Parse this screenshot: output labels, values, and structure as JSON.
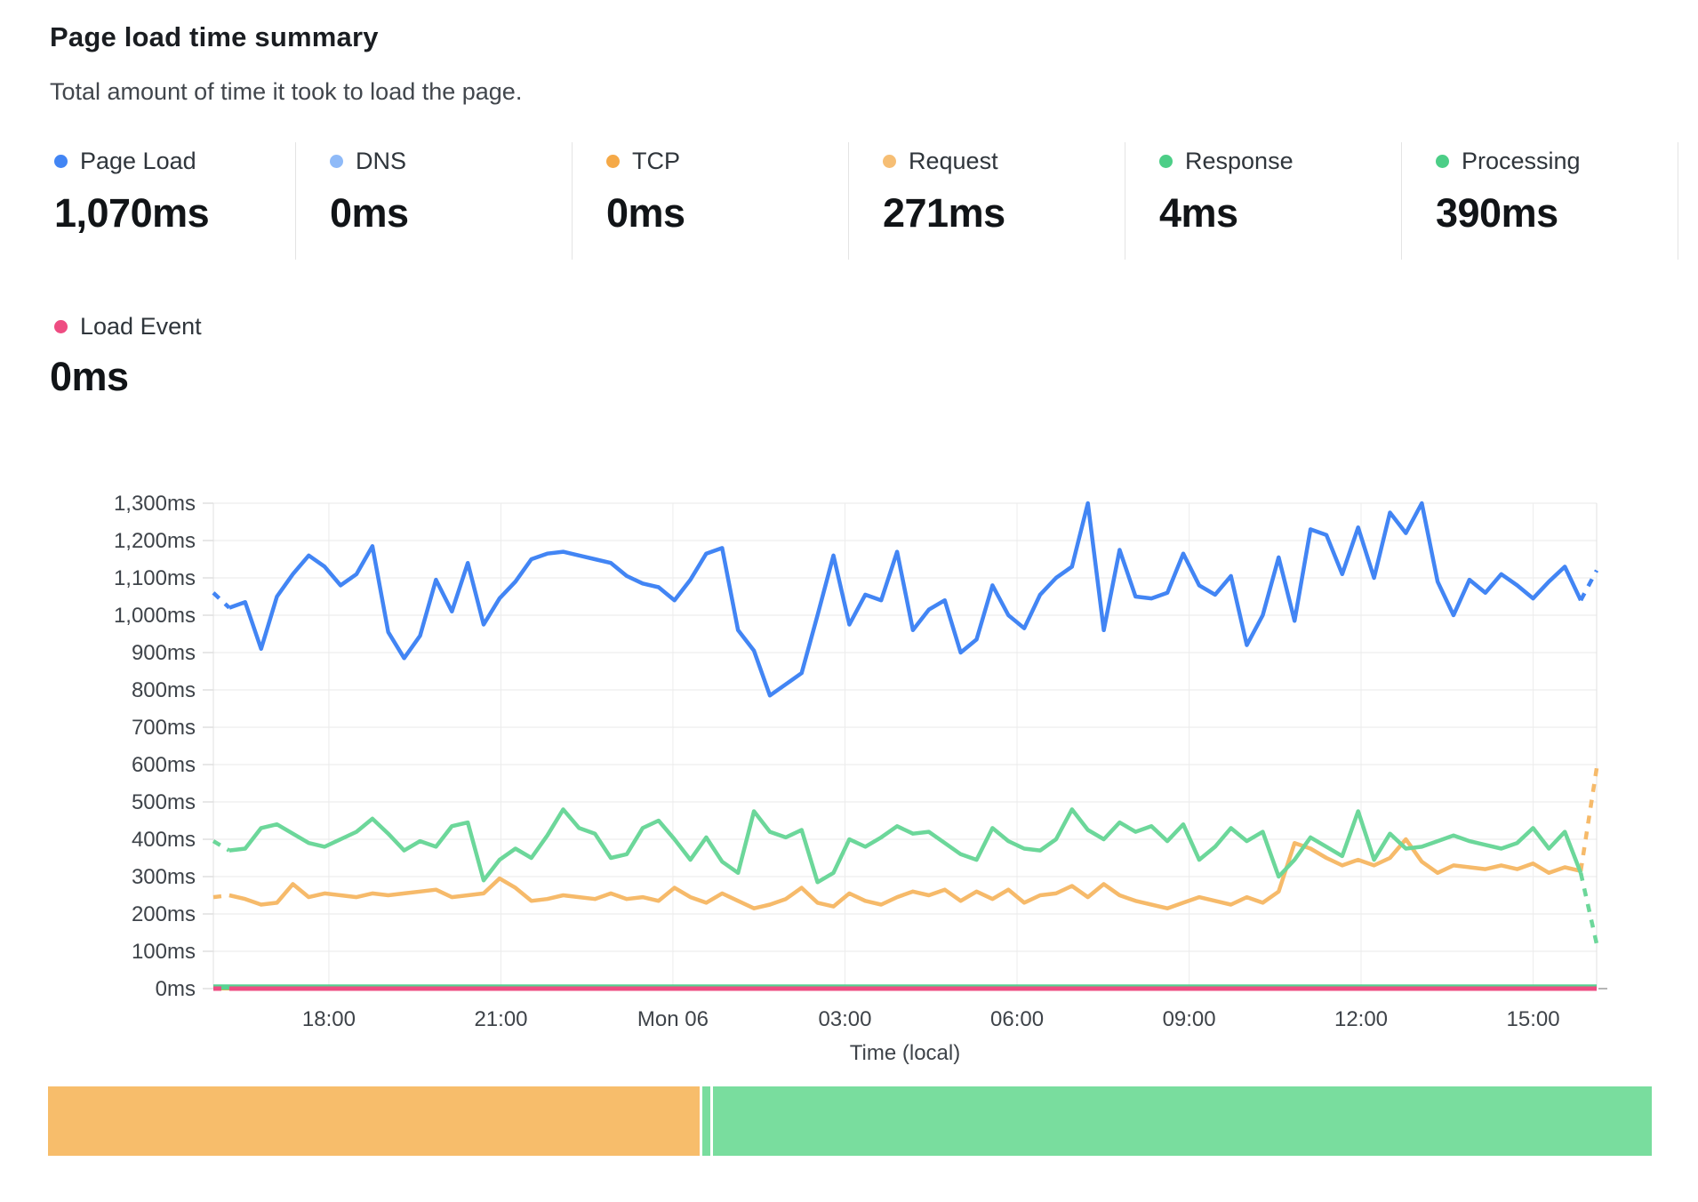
{
  "page": {
    "title": "Page load time summary",
    "subtitle": "Total amount of time it took to load the page."
  },
  "stats": [
    {
      "label": "Page Load",
      "value": "1,070ms",
      "color": "#4285F4"
    },
    {
      "label": "DNS",
      "value": "0ms",
      "color": "#8FBAF8"
    },
    {
      "label": "TCP",
      "value": "0ms",
      "color": "#F5A947"
    },
    {
      "label": "Request",
      "value": "271ms",
      "color": "#F6BE74"
    },
    {
      "label": "Response",
      "value": "4ms",
      "color": "#4CCE87"
    },
    {
      "label": "Processing",
      "value": "390ms",
      "color": "#4CCE87"
    }
  ],
  "load_event": {
    "label": "Load Event",
    "value": "0ms",
    "color": "#EE4D82"
  },
  "chart_data": {
    "type": "line",
    "title": "",
    "xlabel": "Time (local)",
    "ylabel": "",
    "ylim": [
      0,
      1300
    ],
    "grid": true,
    "y_ticks": [
      {
        "v": 0,
        "label": "0ms"
      },
      {
        "v": 100,
        "label": "100ms"
      },
      {
        "v": 200,
        "label": "200ms"
      },
      {
        "v": 300,
        "label": "300ms"
      },
      {
        "v": 400,
        "label": "400ms"
      },
      {
        "v": 500,
        "label": "500ms"
      },
      {
        "v": 600,
        "label": "600ms"
      },
      {
        "v": 700,
        "label": "700ms"
      },
      {
        "v": 800,
        "label": "800ms"
      },
      {
        "v": 900,
        "label": "900ms"
      },
      {
        "v": 1000,
        "label": "1,000ms"
      },
      {
        "v": 1100,
        "label": "1,100ms"
      },
      {
        "v": 1200,
        "label": "1,200ms"
      },
      {
        "v": 1300,
        "label": "1,300ms"
      }
    ],
    "x_ticks": [
      {
        "f": 0.0835,
        "label": "18:00"
      },
      {
        "f": 0.2079,
        "label": "21:00"
      },
      {
        "f": 0.3322,
        "label": "Mon 06"
      },
      {
        "f": 0.4566,
        "label": "03:00"
      },
      {
        "f": 0.581,
        "label": "06:00"
      },
      {
        "f": 0.7054,
        "label": "09:00"
      },
      {
        "f": 0.8297,
        "label": "12:00"
      },
      {
        "f": 0.9541,
        "label": "15:00"
      }
    ],
    "note": "first and last segments of Page Load, Processing and Request are dashed (partial buckets); values estimated from gridlines",
    "series": [
      {
        "name": "DNS",
        "color": "#8FBAF8",
        "width": 4,
        "const": 0
      },
      {
        "name": "TCP",
        "color": "#F5A947",
        "width": 4,
        "const": 0
      },
      {
        "name": "Response",
        "color": "#57D292",
        "width": 6,
        "const": 4
      },
      {
        "name": "Request",
        "color": "#F6BA6A",
        "width": 4.5,
        "dash_first": true,
        "dash_last": true,
        "values": [
          245,
          250,
          240,
          225,
          230,
          280,
          245,
          255,
          250,
          245,
          255,
          250,
          255,
          260,
          265,
          245,
          250,
          255,
          295,
          270,
          235,
          240,
          250,
          245,
          240,
          255,
          240,
          245,
          235,
          270,
          245,
          230,
          255,
          235,
          215,
          225,
          240,
          270,
          230,
          220,
          255,
          235,
          225,
          245,
          260,
          250,
          265,
          235,
          260,
          240,
          265,
          230,
          250,
          255,
          275,
          245,
          280,
          250,
          235,
          225,
          215,
          230,
          245,
          235,
          225,
          245,
          230,
          260,
          390,
          375,
          350,
          330,
          345,
          330,
          350,
          400,
          340,
          310,
          330,
          325,
          320,
          330,
          320,
          335,
          310,
          325,
          315,
          590
        ]
      },
      {
        "name": "Processing",
        "color": "#6CD79A",
        "width": 4.5,
        "dash_first": true,
        "dash_last": true,
        "values": [
          395,
          370,
          375,
          430,
          440,
          415,
          390,
          380,
          400,
          420,
          455,
          415,
          370,
          395,
          380,
          435,
          445,
          290,
          345,
          375,
          350,
          410,
          480,
          430,
          415,
          350,
          360,
          430,
          450,
          400,
          345,
          405,
          340,
          310,
          475,
          420,
          405,
          425,
          285,
          310,
          400,
          380,
          405,
          435,
          415,
          420,
          390,
          360,
          345,
          430,
          395,
          375,
          370,
          400,
          480,
          425,
          400,
          445,
          420,
          435,
          395,
          440,
          345,
          380,
          430,
          395,
          420,
          300,
          345,
          405,
          380,
          355,
          475,
          345,
          415,
          375,
          380,
          395,
          410,
          395,
          385,
          375,
          390,
          430,
          375,
          420,
          310,
          120
        ]
      },
      {
        "name": "Page Load",
        "color": "#4285F4",
        "width": 4.5,
        "dash_first": true,
        "dash_last": true,
        "values": [
          1060,
          1020,
          1035,
          910,
          1050,
          1110,
          1160,
          1130,
          1080,
          1110,
          1185,
          955,
          885,
          945,
          1095,
          1010,
          1140,
          975,
          1045,
          1090,
          1150,
          1165,
          1170,
          1160,
          1150,
          1140,
          1105,
          1085,
          1075,
          1040,
          1095,
          1165,
          1180,
          960,
          905,
          785,
          815,
          845,
          1000,
          1160,
          975,
          1055,
          1040,
          1170,
          960,
          1015,
          1040,
          900,
          935,
          1080,
          1000,
          965,
          1055,
          1100,
          1130,
          1300,
          960,
          1175,
          1050,
          1045,
          1060,
          1165,
          1080,
          1055,
          1105,
          920,
          1000,
          1155,
          985,
          1230,
          1215,
          1110,
          1235,
          1100,
          1275,
          1220,
          1300,
          1090,
          1000,
          1095,
          1060,
          1110,
          1080,
          1045,
          1090,
          1130,
          1040,
          1120
        ]
      },
      {
        "name": "Load Event",
        "color": "#EE4D82",
        "width": 5,
        "const": 0,
        "dash_first": true
      }
    ]
  },
  "bar": {
    "segments": [
      {
        "name": "Request",
        "value": 271,
        "color": "#F7BD6B"
      },
      {
        "name": "Response",
        "value": 4,
        "color": "#79DD9E"
      },
      {
        "name": "Processing",
        "value": 390,
        "color": "#79DD9E"
      }
    ]
  }
}
